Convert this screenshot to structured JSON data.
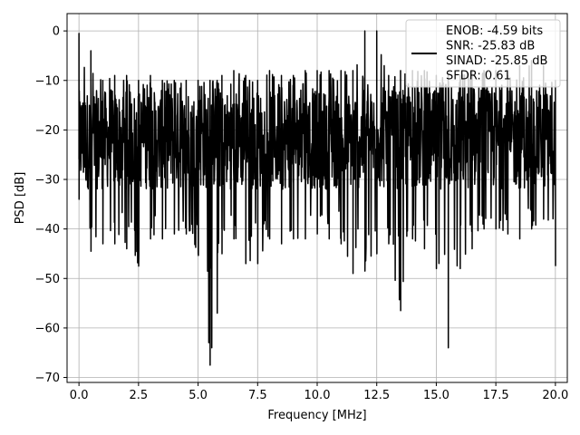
{
  "chart_data": {
    "type": "line",
    "xlabel": "Frequency [MHz]",
    "ylabel": "PSD [dB]",
    "xlim": [
      -0.5,
      20.5
    ],
    "ylim": [
      -71,
      3.5
    ],
    "x_ticks": [
      0.0,
      2.5,
      5.0,
      7.5,
      10.0,
      12.5,
      15.0,
      17.5,
      20.0
    ],
    "x_tick_labels": [
      "0.0",
      "2.5",
      "5.0",
      "7.5",
      "10.0",
      "12.5",
      "15.0",
      "17.5",
      "20.0"
    ],
    "y_ticks": [
      0,
      -10,
      -20,
      -30,
      -40,
      -50,
      -60,
      -70
    ],
    "y_tick_labels": [
      "0",
      "−10",
      "−20",
      "−30",
      "−40",
      "−50",
      "−60",
      "−70"
    ],
    "grid": true,
    "legend_position": "top-right",
    "legend_lines": [
      "ENOB: -4.59 bits",
      "SNR: -25.83 dB",
      "SINAD: -25.85 dB",
      "SFDR: 0.61"
    ],
    "series": [
      {
        "color": "#000000",
        "x_range": [
          0.0,
          20.0
        ],
        "typical_band_db": [
          -32,
          -12
        ],
        "envelope": [
          {
            "x": 0.0,
            "y_min": -34,
            "y_max": -0.5
          },
          {
            "x": 0.5,
            "y_min": -44.5,
            "y_max": -4
          },
          {
            "x": 1.0,
            "y_min": -43,
            "y_max": -10
          },
          {
            "x": 1.5,
            "y_min": -43,
            "y_max": -9
          },
          {
            "x": 2.0,
            "y_min": -44,
            "y_max": -9
          },
          {
            "x": 2.5,
            "y_min": -47.5,
            "y_max": -10
          },
          {
            "x": 3.0,
            "y_min": -42,
            "y_max": -9
          },
          {
            "x": 3.5,
            "y_min": -42,
            "y_max": -10
          },
          {
            "x": 4.0,
            "y_min": -41,
            "y_max": -10
          },
          {
            "x": 4.5,
            "y_min": -41,
            "y_max": -10
          },
          {
            "x": 5.0,
            "y_min": -45,
            "y_max": -10
          },
          {
            "x": 5.5,
            "y_min": -67.5,
            "y_max": -10
          },
          {
            "x": 5.8,
            "y_min": -57,
            "y_max": -10
          },
          {
            "x": 6.0,
            "y_min": -45,
            "y_max": -9
          },
          {
            "x": 6.5,
            "y_min": -42,
            "y_max": -8
          },
          {
            "x": 7.0,
            "y_min": -47,
            "y_max": -9
          },
          {
            "x": 7.5,
            "y_min": -47,
            "y_max": -10
          },
          {
            "x": 8.0,
            "y_min": -42,
            "y_max": -8
          },
          {
            "x": 8.5,
            "y_min": -43,
            "y_max": -9
          },
          {
            "x": 9.0,
            "y_min": -42,
            "y_max": -9
          },
          {
            "x": 9.5,
            "y_min": -42,
            "y_max": -8
          },
          {
            "x": 10.0,
            "y_min": -41,
            "y_max": -8
          },
          {
            "x": 10.5,
            "y_min": -42,
            "y_max": -8
          },
          {
            "x": 11.0,
            "y_min": -43,
            "y_max": -8
          },
          {
            "x": 11.5,
            "y_min": -49,
            "y_max": -8
          },
          {
            "x": 12.0,
            "y_min": -48.5,
            "y_max": 0.0
          },
          {
            "x": 12.5,
            "y_min": -45,
            "y_max": 0.0
          },
          {
            "x": 13.0,
            "y_min": -43,
            "y_max": -9
          },
          {
            "x": 13.5,
            "y_min": -56.5,
            "y_max": -8
          },
          {
            "x": 14.0,
            "y_min": -42,
            "y_max": -8
          },
          {
            "x": 14.5,
            "y_min": -44,
            "y_max": -8
          },
          {
            "x": 15.0,
            "y_min": -48,
            "y_max": -9
          },
          {
            "x": 15.5,
            "y_min": -64,
            "y_max": -9
          },
          {
            "x": 16.0,
            "y_min": -48,
            "y_max": -9
          },
          {
            "x": 16.5,
            "y_min": -44,
            "y_max": -8
          },
          {
            "x": 17.0,
            "y_min": -40,
            "y_max": -8
          },
          {
            "x": 17.5,
            "y_min": -40,
            "y_max": -8
          },
          {
            "x": 18.0,
            "y_min": -41,
            "y_max": -9
          },
          {
            "x": 18.5,
            "y_min": -42,
            "y_max": -7
          },
          {
            "x": 19.0,
            "y_min": -40,
            "y_max": -6
          },
          {
            "x": 19.5,
            "y_min": -38,
            "y_max": -7
          },
          {
            "x": 20.0,
            "y_min": -47.5,
            "y_max": -10
          }
        ]
      }
    ]
  }
}
